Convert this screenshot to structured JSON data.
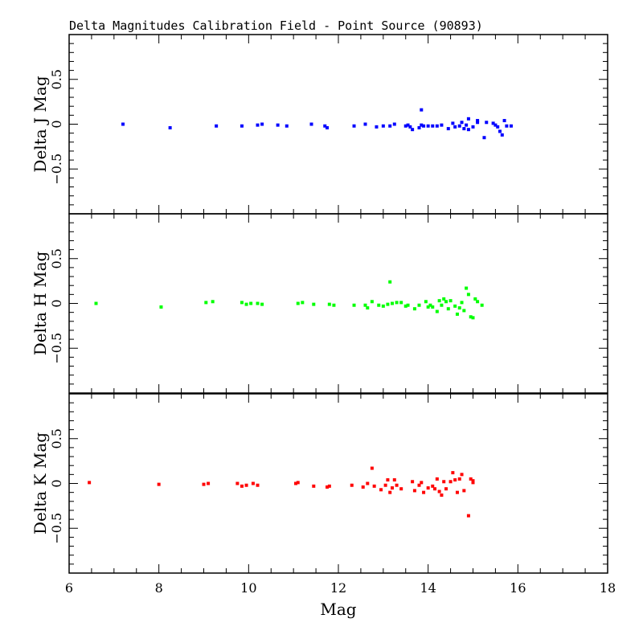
{
  "chart_data": {
    "type": "scatter",
    "title": "Delta Magnitudes Calibration Field - Point Source (90893)",
    "xlabel": "Mag",
    "xlim": [
      6,
      18
    ],
    "x_ticks": [
      "6",
      "8",
      "10",
      "12",
      "14",
      "16",
      "18"
    ],
    "grid": false,
    "panels": [
      {
        "ylabel": "Delta J Mag",
        "ylim": [
          -1,
          1
        ],
        "y_ticks": [
          "-0.5",
          "0",
          "0.5"
        ],
        "color": "#0000ff",
        "points": [
          [
            7.2,
            0.0
          ],
          [
            8.25,
            -0.04
          ],
          [
            9.28,
            -0.02
          ],
          [
            9.85,
            -0.02
          ],
          [
            10.2,
            -0.01
          ],
          [
            10.3,
            0.0
          ],
          [
            10.65,
            -0.01
          ],
          [
            10.85,
            -0.02
          ],
          [
            11.4,
            0.0
          ],
          [
            11.7,
            -0.02
          ],
          [
            11.75,
            -0.04
          ],
          [
            12.35,
            -0.02
          ],
          [
            12.6,
            0.0
          ],
          [
            12.85,
            -0.03
          ],
          [
            13.0,
            -0.02
          ],
          [
            13.15,
            -0.02
          ],
          [
            13.25,
            0.0
          ],
          [
            13.5,
            -0.02
          ],
          [
            13.55,
            -0.01
          ],
          [
            13.6,
            -0.03
          ],
          [
            13.65,
            -0.06
          ],
          [
            13.8,
            -0.04
          ],
          [
            13.85,
            0.16
          ],
          [
            13.85,
            -0.01
          ],
          [
            13.9,
            -0.02
          ],
          [
            14.0,
            -0.02
          ],
          [
            14.1,
            -0.02
          ],
          [
            14.2,
            -0.02
          ],
          [
            14.3,
            -0.01
          ],
          [
            14.45,
            -0.05
          ],
          [
            14.55,
            0.01
          ],
          [
            14.6,
            -0.03
          ],
          [
            14.7,
            -0.02
          ],
          [
            14.75,
            0.02
          ],
          [
            14.8,
            -0.05
          ],
          [
            14.85,
            -0.01
          ],
          [
            14.9,
            0.06
          ],
          [
            14.9,
            -0.06
          ],
          [
            15.0,
            -0.03
          ],
          [
            15.1,
            0.02
          ],
          [
            15.1,
            0.04
          ],
          [
            15.25,
            -0.15
          ],
          [
            15.3,
            0.02
          ],
          [
            15.45,
            0.01
          ],
          [
            15.5,
            -0.01
          ],
          [
            15.55,
            -0.03
          ],
          [
            15.6,
            -0.08
          ],
          [
            15.65,
            -0.12
          ],
          [
            15.7,
            0.04
          ],
          [
            15.75,
            -0.02
          ],
          [
            15.85,
            -0.02
          ]
        ]
      },
      {
        "ylabel": "Delta H Mag",
        "ylim": [
          -1,
          1
        ],
        "y_ticks": [
          "-0.5",
          "0",
          "0.5"
        ],
        "color": "#00ff00",
        "points": [
          [
            6.6,
            0.0
          ],
          [
            8.05,
            -0.04
          ],
          [
            9.05,
            0.01
          ],
          [
            9.2,
            0.02
          ],
          [
            9.85,
            0.01
          ],
          [
            9.95,
            -0.01
          ],
          [
            10.05,
            0.0
          ],
          [
            10.2,
            0.0
          ],
          [
            10.3,
            -0.01
          ],
          [
            11.1,
            0.0
          ],
          [
            11.2,
            0.01
          ],
          [
            11.45,
            -0.01
          ],
          [
            11.8,
            -0.01
          ],
          [
            11.9,
            -0.02
          ],
          [
            12.35,
            -0.02
          ],
          [
            12.6,
            -0.02
          ],
          [
            12.65,
            -0.05
          ],
          [
            12.75,
            0.02
          ],
          [
            12.9,
            -0.02
          ],
          [
            13.0,
            -0.03
          ],
          [
            13.1,
            -0.01
          ],
          [
            13.15,
            0.24
          ],
          [
            13.2,
            0.0
          ],
          [
            13.3,
            0.01
          ],
          [
            13.4,
            0.01
          ],
          [
            13.5,
            -0.03
          ],
          [
            13.55,
            -0.02
          ],
          [
            13.7,
            -0.06
          ],
          [
            13.8,
            -0.02
          ],
          [
            13.95,
            0.02
          ],
          [
            14.0,
            -0.04
          ],
          [
            14.05,
            -0.02
          ],
          [
            14.1,
            -0.04
          ],
          [
            14.2,
            -0.09
          ],
          [
            14.25,
            0.03
          ],
          [
            14.3,
            -0.02
          ],
          [
            14.35,
            0.05
          ],
          [
            14.4,
            0.02
          ],
          [
            14.45,
            -0.06
          ],
          [
            14.5,
            0.03
          ],
          [
            14.6,
            -0.03
          ],
          [
            14.65,
            -0.12
          ],
          [
            14.7,
            -0.05
          ],
          [
            14.75,
            0.01
          ],
          [
            14.8,
            -0.08
          ],
          [
            14.85,
            0.17
          ],
          [
            14.9,
            0.1
          ],
          [
            14.95,
            -0.15
          ],
          [
            15.0,
            -0.16
          ],
          [
            15.05,
            0.05
          ],
          [
            15.1,
            0.02
          ],
          [
            15.2,
            -0.02
          ]
        ]
      },
      {
        "ylabel": "Delta K Mag",
        "ylim": [
          -1,
          1
        ],
        "y_ticks": [
          "-0.5",
          "0",
          "0.5"
        ],
        "color": "#ff0000",
        "points": [
          [
            6.45,
            0.01
          ],
          [
            8.0,
            -0.01
          ],
          [
            9.0,
            -0.01
          ],
          [
            9.1,
            0.0
          ],
          [
            9.75,
            0.0
          ],
          [
            9.85,
            -0.03
          ],
          [
            9.95,
            -0.02
          ],
          [
            10.1,
            0.0
          ],
          [
            10.2,
            -0.02
          ],
          [
            11.05,
            0.0
          ],
          [
            11.1,
            0.01
          ],
          [
            11.45,
            -0.03
          ],
          [
            11.75,
            -0.04
          ],
          [
            11.8,
            -0.03
          ],
          [
            12.3,
            -0.02
          ],
          [
            12.55,
            -0.04
          ],
          [
            12.65,
            0.0
          ],
          [
            12.75,
            0.17
          ],
          [
            12.8,
            -0.03
          ],
          [
            12.95,
            -0.07
          ],
          [
            13.05,
            -0.02
          ],
          [
            13.1,
            0.04
          ],
          [
            13.15,
            -0.1
          ],
          [
            13.2,
            -0.05
          ],
          [
            13.25,
            0.04
          ],
          [
            13.3,
            -0.02
          ],
          [
            13.4,
            -0.06
          ],
          [
            13.65,
            0.02
          ],
          [
            13.7,
            -0.08
          ],
          [
            13.8,
            -0.02
          ],
          [
            13.85,
            0.01
          ],
          [
            13.9,
            -0.1
          ],
          [
            14.0,
            -0.05
          ],
          [
            14.1,
            -0.03
          ],
          [
            14.15,
            -0.06
          ],
          [
            14.2,
            0.05
          ],
          [
            14.25,
            -0.09
          ],
          [
            14.3,
            -0.13
          ],
          [
            14.35,
            0.02
          ],
          [
            14.4,
            -0.06
          ],
          [
            14.5,
            0.02
          ],
          [
            14.55,
            0.12
          ],
          [
            14.6,
            0.04
          ],
          [
            14.65,
            -0.1
          ],
          [
            14.7,
            0.05
          ],
          [
            14.75,
            0.1
          ],
          [
            14.8,
            -0.08
          ],
          [
            14.9,
            -0.36
          ],
          [
            14.95,
            0.05
          ],
          [
            15.0,
            0.01
          ],
          [
            15.0,
            0.03
          ]
        ]
      }
    ]
  }
}
